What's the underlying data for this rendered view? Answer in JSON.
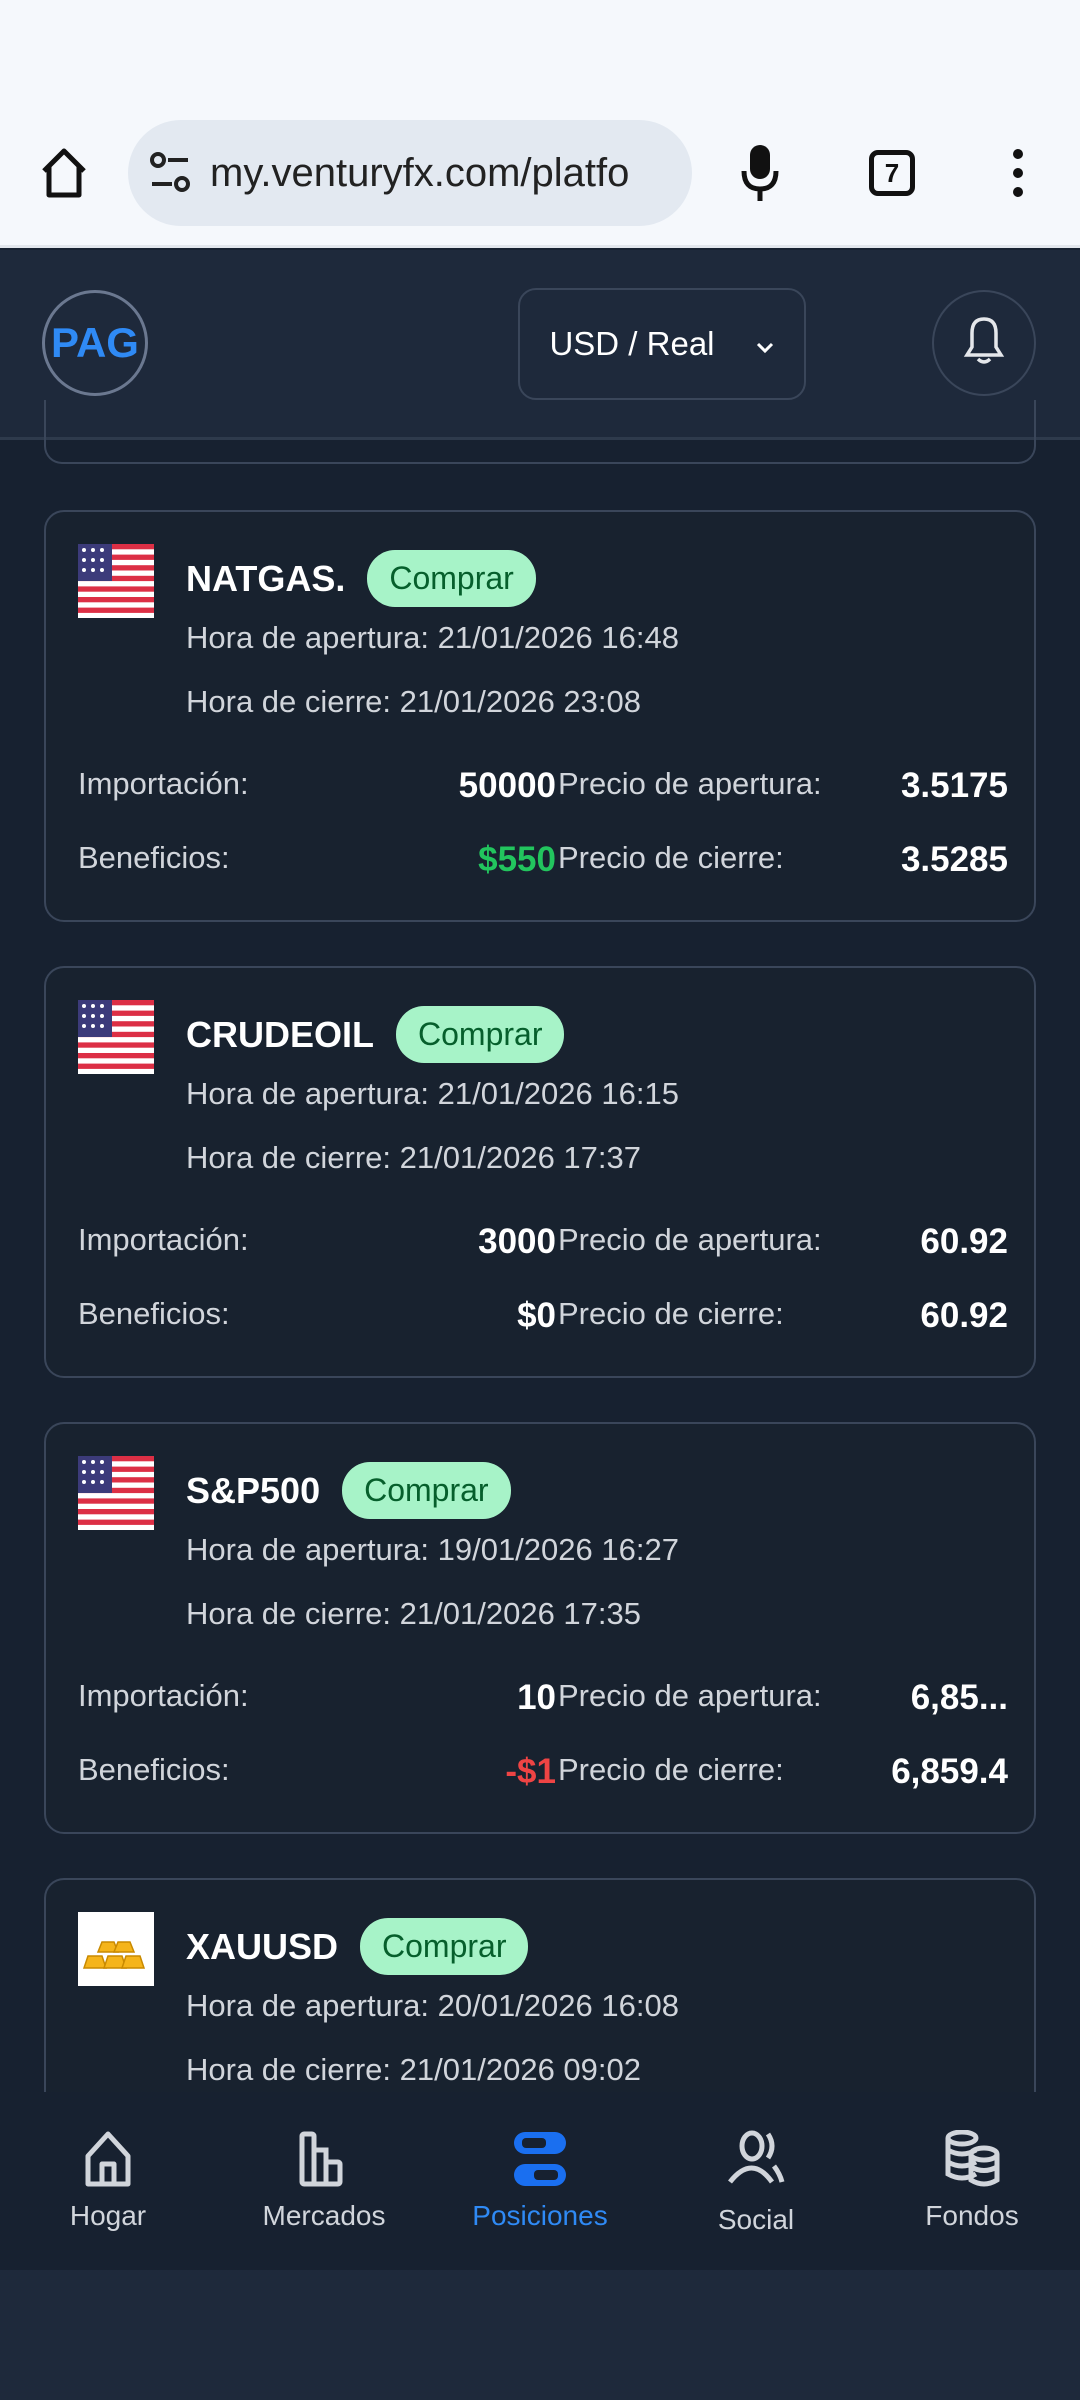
{
  "browser": {
    "url": "my.venturyfx.com/platfo",
    "tab_count": "7"
  },
  "header": {
    "avatar": "PAG",
    "account": "USD / Real"
  },
  "labels": {
    "open_time": "Hora de apertura:",
    "close_time": "Hora de cierre:",
    "amount": "Importación:",
    "profit": "Beneficios:",
    "open_price": "Precio de apertura:",
    "close_price": "Precio de cierre:"
  },
  "colors": {
    "positive": "#22c55e",
    "negative": "#ef4444",
    "accent": "#2f8af5",
    "badge_bg": "#a7f3c8"
  },
  "positions": [
    {
      "symbol": "NATGAS.",
      "side": "Comprar",
      "flag": "us-flag",
      "open_time": "21/01/2026 16:48",
      "close_time": "21/01/2026 23:08",
      "amount": "50000",
      "profit": "$550",
      "profit_sign": "positive",
      "open_price": "3.5175",
      "close_price": "3.5285"
    },
    {
      "symbol": "CRUDEOIL",
      "side": "Comprar",
      "flag": "us-flag",
      "open_time": "21/01/2026 16:15",
      "close_time": "21/01/2026 17:37",
      "amount": "3000",
      "profit": "$0",
      "profit_sign": "neutral",
      "open_price": "60.92",
      "close_price": "60.92"
    },
    {
      "symbol": "S&P500",
      "side": "Comprar",
      "flag": "us-flag",
      "open_time": "19/01/2026 16:27",
      "close_time": "21/01/2026 17:35",
      "amount": "10",
      "profit": "-$1",
      "profit_sign": "negative",
      "open_price": "6,85...",
      "close_price": "6,859.4"
    },
    {
      "symbol": "XAUUSD",
      "side": "Comprar",
      "flag": "gold-bars",
      "open_time": "20/01/2026 16:08",
      "close_time": "21/01/2026 09:02"
    }
  ],
  "nav": [
    {
      "label": "Hogar",
      "icon": "home-icon"
    },
    {
      "label": "Mercados",
      "icon": "bar-chart-icon"
    },
    {
      "label": "Posiciones",
      "icon": "toggle-icon",
      "active": true
    },
    {
      "label": "Social",
      "icon": "users-icon"
    },
    {
      "label": "Fondos",
      "icon": "coins-icon"
    }
  ]
}
